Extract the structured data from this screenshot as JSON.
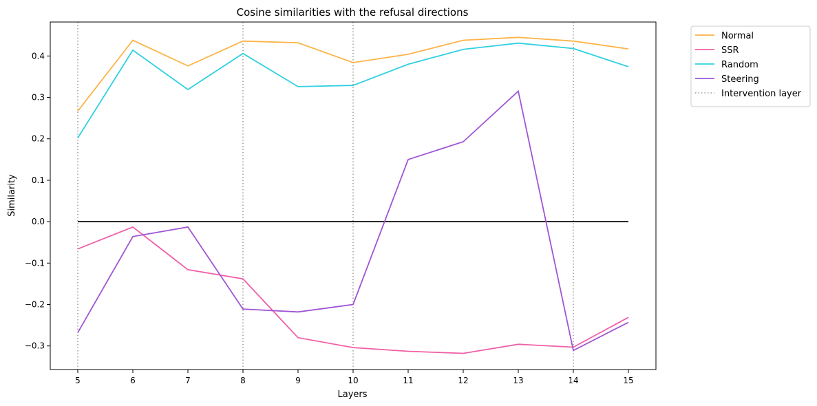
{
  "chart_data": {
    "type": "line",
    "title": "Cosine similarities with the refusal directions",
    "xlabel": "Layers",
    "ylabel": "Similarity",
    "x": [
      5,
      6,
      7,
      8,
      9,
      10,
      11,
      12,
      13,
      14,
      15
    ],
    "x_ticks": [
      "5",
      "6",
      "7",
      "8",
      "9",
      "10",
      "11",
      "12",
      "13",
      "14",
      "15"
    ],
    "y_ticks": [
      "0.4",
      "0.3",
      "0.2",
      "0.1",
      "0.0",
      "−0.1",
      "−0.2",
      "−0.3"
    ],
    "y_tick_values": [
      0.4,
      0.3,
      0.2,
      0.1,
      0.0,
      -0.1,
      -0.2,
      -0.3
    ],
    "xlim": [
      4.5,
      15.5
    ],
    "ylim": [
      -0.357,
      0.482
    ],
    "zero_line": 0.0,
    "intervention_layers": [
      5,
      8,
      10,
      14
    ],
    "series": [
      {
        "name": "Normal",
        "color": "#fdb347",
        "values": [
          0.267,
          0.438,
          0.376,
          0.436,
          0.432,
          0.384,
          0.404,
          0.438,
          0.445,
          0.436,
          0.417
        ]
      },
      {
        "name": "SSR",
        "color": "#ef5fa7",
        "values": [
          -0.066,
          -0.013,
          -0.116,
          -0.138,
          -0.28,
          -0.304,
          -0.313,
          -0.318,
          -0.296,
          -0.303,
          -0.231
        ]
      },
      {
        "name": "Random",
        "color": "#2fd0e1",
        "values": [
          0.202,
          0.414,
          0.319,
          0.406,
          0.326,
          0.329,
          0.38,
          0.416,
          0.431,
          0.418,
          0.374
        ]
      },
      {
        "name": "Steering",
        "color": "#a155d4",
        "values": [
          -0.268,
          -0.036,
          -0.013,
          -0.211,
          -0.218,
          -0.2,
          0.15,
          0.193,
          0.315,
          -0.311,
          -0.243
        ]
      }
    ],
    "legend": {
      "position": "outside-top-right",
      "entries": [
        {
          "label": "Normal",
          "color": "#fdb347",
          "style": "solid"
        },
        {
          "label": "SSR",
          "color": "#ef5fa7",
          "style": "solid"
        },
        {
          "label": "Random",
          "color": "#2fd0e1",
          "style": "solid"
        },
        {
          "label": "Steering",
          "color": "#a155d4",
          "style": "solid"
        },
        {
          "label": "Intervention layer",
          "color": "#999999",
          "style": "dotted"
        }
      ]
    },
    "grid": false
  }
}
